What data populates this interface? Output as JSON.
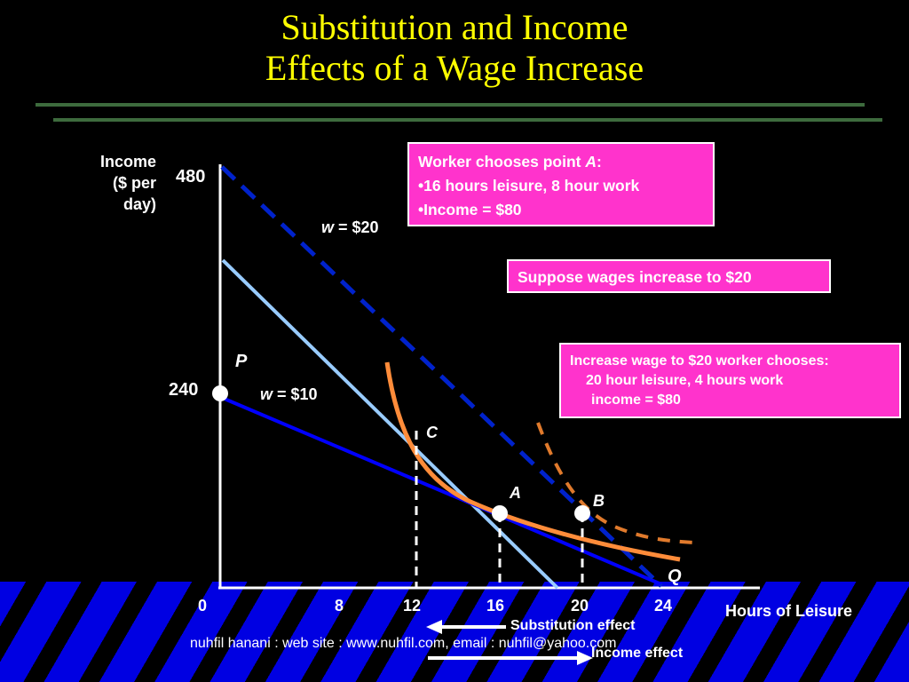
{
  "title": {
    "line1": "Substitution and Income",
    "line2": "Effects of a Wage Increase"
  },
  "axes": {
    "y_label_line1": "Income",
    "y_label_line2": "($ per",
    "y_label_line3": "day)",
    "x_label": "Hours of Leisure",
    "y_ticks": [
      "480",
      "240"
    ],
    "x_ticks": [
      "0",
      "8",
      "12",
      "16",
      "20",
      "24"
    ]
  },
  "lines": {
    "w20_label_italic": "w",
    "w20_label_rest": " = $20",
    "w10_label_italic": "w",
    "w10_label_rest": " = $10"
  },
  "points": {
    "P": "P",
    "C": "C",
    "A": "A",
    "B": "B",
    "Q": "Q"
  },
  "callouts": {
    "box1_line1_prefix": "Worker chooses point ",
    "box1_line1_italic": "A",
    "box1_line1_suffix": ":",
    "box1_line2": "•16 hours leisure, 8 hour work",
    "box1_line3": "•Income = $80",
    "box2": "Suppose wages increase to $20",
    "box3_line1": "Increase wage to $20 worker chooses:",
    "box3_line2": "20 hour leisure, 4 hours work",
    "box3_line3": "income = $80"
  },
  "effects": {
    "substitution": "Substitution effect",
    "income": "Income effect"
  },
  "footer": "nuhfil hanani : web site : www.nuhfil.com, email : nuhfil@yahoo.com",
  "colors": {
    "title": "#ffff00",
    "w20_line": "#0022cc",
    "w10_line": "#0000ff",
    "light_line": "#99ccff",
    "indifference": "#ff8c3a",
    "callout_bg": "#ff33cc"
  }
}
